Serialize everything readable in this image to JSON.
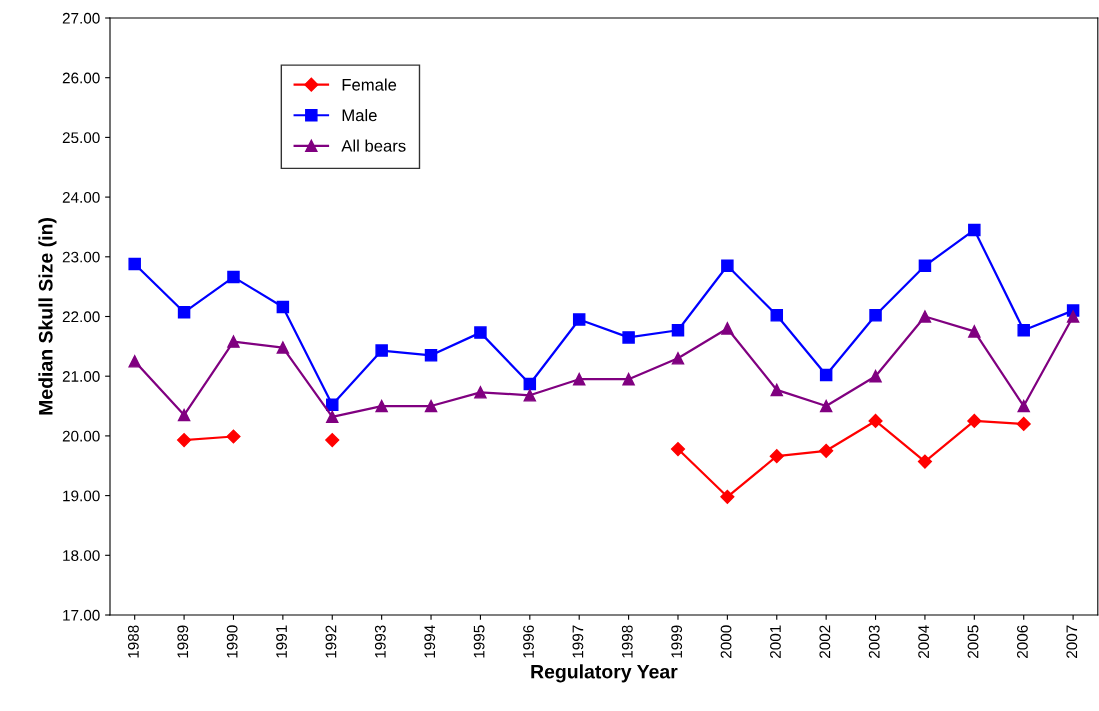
{
  "chart_data": {
    "type": "line",
    "xlabel": "Regulatory Year",
    "ylabel": "Median Skull Size (in)",
    "categories": [
      "1988",
      "1989",
      "1990",
      "1991",
      "1992",
      "1993",
      "1994",
      "1995",
      "1996",
      "1997",
      "1998",
      "1999",
      "2000",
      "2001",
      "2002",
      "2003",
      "2004",
      "2005",
      "2006",
      "2007"
    ],
    "series": [
      {
        "name": "Female",
        "color": "#ff0000",
        "marker": "diamond",
        "values": [
          null,
          19.93,
          19.99,
          null,
          19.93,
          null,
          null,
          null,
          null,
          null,
          null,
          19.78,
          18.98,
          19.66,
          19.75,
          20.25,
          19.57,
          20.25,
          20.2,
          null
        ]
      },
      {
        "name": "Male",
        "color": "#0000ff",
        "marker": "square",
        "values": [
          22.88,
          22.07,
          22.66,
          22.16,
          20.52,
          21.43,
          21.35,
          21.73,
          20.87,
          21.95,
          21.65,
          21.77,
          22.85,
          22.02,
          21.02,
          22.02,
          22.85,
          23.45,
          21.77,
          22.1
        ]
      },
      {
        "name": "All bears",
        "color": "#800080",
        "marker": "triangle",
        "values": [
          21.25,
          20.35,
          21.58,
          21.48,
          20.32,
          20.5,
          20.5,
          20.73,
          20.68,
          20.95,
          20.95,
          21.3,
          21.8,
          20.77,
          20.5,
          21.0,
          22.0,
          21.75,
          20.5,
          22.0
        ]
      }
    ],
    "ylim": [
      17,
      27
    ],
    "yticks": [
      {
        "value": 17,
        "label": "17.00"
      },
      {
        "value": 18,
        "label": "18.00"
      },
      {
        "value": 19,
        "label": "19.00"
      },
      {
        "value": 20,
        "label": "20.00"
      },
      {
        "value": 21,
        "label": "21.00"
      },
      {
        "value": 22,
        "label": "22.00"
      },
      {
        "value": 23,
        "label": "23.00"
      },
      {
        "value": 24,
        "label": "24.00"
      },
      {
        "value": 25,
        "label": "25.00"
      },
      {
        "value": 26,
        "label": "26.00"
      },
      {
        "value": 27,
        "label": "27.00"
      }
    ],
    "grid": false,
    "legend": "top left",
    "line_style": "solid"
  }
}
